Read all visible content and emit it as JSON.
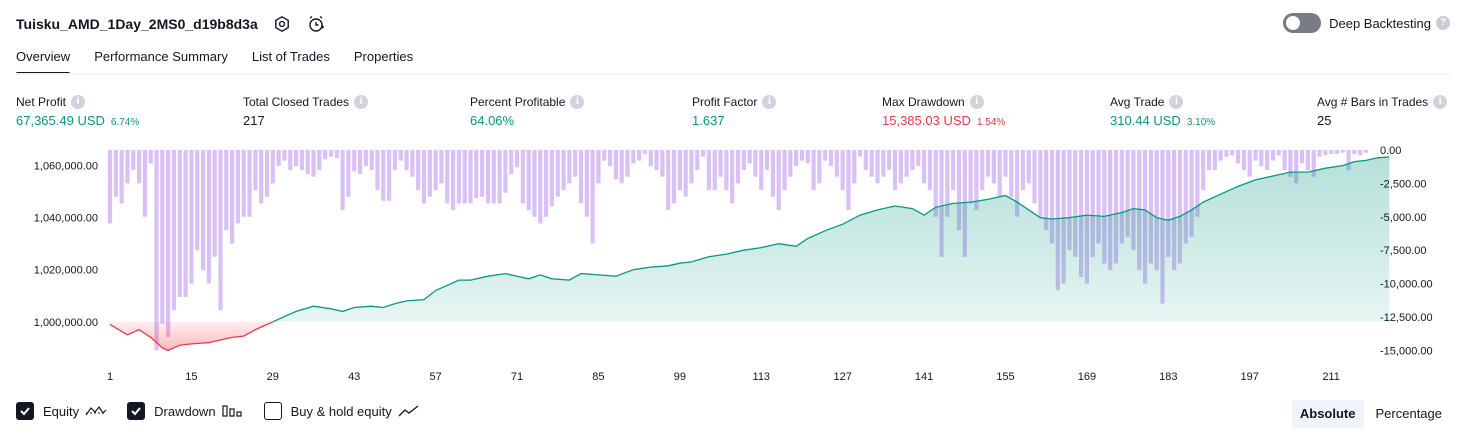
{
  "header": {
    "title": "Tuisku_AMD_1Day_2MS0_d19b8d3a",
    "deep_backtesting_label": "Deep Backtesting",
    "help_glyph": "?"
  },
  "tabs": [
    "Overview",
    "Performance Summary",
    "List of Trades",
    "Properties"
  ],
  "metrics": {
    "info_glyph": "i",
    "net_profit": {
      "label": "Net Profit",
      "value": "67,365.49 USD",
      "pct": "6.74%"
    },
    "total_closed_trades": {
      "label": "Total Closed Trades",
      "value": "217"
    },
    "percent_profitable": {
      "label": "Percent Profitable",
      "value": "64.06%"
    },
    "profit_factor": {
      "label": "Profit Factor",
      "value": "1.637"
    },
    "max_drawdown": {
      "label": "Max Drawdown",
      "value": "15,385.03 USD",
      "pct": "1.54%"
    },
    "avg_trade": {
      "label": "Avg Trade",
      "value": "310.44 USD",
      "pct": "3.10%"
    },
    "avg_bars": {
      "label": "Avg # Bars in Trades",
      "value": "25"
    }
  },
  "legend": {
    "equity": "Equity",
    "drawdown": "Drawdown",
    "buy_hold": "Buy & hold equity",
    "equity_checked": true,
    "drawdown_checked": true,
    "buy_hold_checked": false
  },
  "modes": {
    "absolute": "Absolute",
    "percentage": "Percentage",
    "active": "absolute"
  },
  "colors": {
    "equity_positive": "#089981",
    "equity_negative": "#f23645",
    "drawdown_bar": "#d7bdf5",
    "drawdown_overlap": "#aab0e8"
  },
  "chart_data": {
    "type": "line",
    "x_ticks": [
      "1",
      "15",
      "29",
      "43",
      "57",
      "71",
      "85",
      "99",
      "113",
      "127",
      "141",
      "155",
      "169",
      "183",
      "197",
      "211"
    ],
    "y_left_ticks": [
      "1,060,000.00",
      "1,040,000.00",
      "1,020,000.00",
      "1,000,000.00"
    ],
    "y_right_ticks": [
      "0.00",
      "-2,500.00",
      "-5,000.00",
      "-7,500.00",
      "-10,000.00",
      "-12,500.00",
      "-15,000.00"
    ],
    "initial_capital": 1000000,
    "equity_ylim": [
      988000,
      1066000
    ],
    "drawdown_ylim": [
      -15200,
      0
    ],
    "equity": [
      [
        1,
        999000
      ],
      [
        4,
        995000
      ],
      [
        6,
        997000
      ],
      [
        8,
        994000
      ],
      [
        10,
        990000
      ],
      [
        11,
        989000
      ],
      [
        13,
        991000
      ],
      [
        15,
        991500
      ],
      [
        18,
        992000
      ],
      [
        20,
        993000
      ],
      [
        22,
        994000
      ],
      [
        24,
        994500
      ],
      [
        26,
        997000
      ],
      [
        28,
        999000
      ],
      [
        30,
        1001000
      ],
      [
        33,
        1004000
      ],
      [
        36,
        1006000
      ],
      [
        39,
        1005000
      ],
      [
        41,
        1004000
      ],
      [
        43,
        1005500
      ],
      [
        46,
        1006000
      ],
      [
        48,
        1005500
      ],
      [
        50,
        1007000
      ],
      [
        52,
        1008000
      ],
      [
        55,
        1008500
      ],
      [
        57,
        1012000
      ],
      [
        59,
        1014000
      ],
      [
        61,
        1016000
      ],
      [
        63,
        1016000
      ],
      [
        66,
        1017500
      ],
      [
        69,
        1018500
      ],
      [
        71,
        1017500
      ],
      [
        73,
        1016500
      ],
      [
        75,
        1018000
      ],
      [
        77,
        1016500
      ],
      [
        80,
        1016000
      ],
      [
        82,
        1018500
      ],
      [
        85,
        1018000
      ],
      [
        88,
        1017500
      ],
      [
        91,
        1020000
      ],
      [
        94,
        1021000
      ],
      [
        97,
        1021500
      ],
      [
        99,
        1022500
      ],
      [
        101,
        1023000
      ],
      [
        104,
        1025000
      ],
      [
        107,
        1026000
      ],
      [
        110,
        1027500
      ],
      [
        113,
        1028500
      ],
      [
        116,
        1030000
      ],
      [
        119,
        1029000
      ],
      [
        121,
        1032000
      ],
      [
        124,
        1035000
      ],
      [
        127,
        1037500
      ],
      [
        130,
        1041000
      ],
      [
        133,
        1043000
      ],
      [
        136,
        1044500
      ],
      [
        139,
        1043500
      ],
      [
        141,
        1041000
      ],
      [
        143,
        1044000
      ],
      [
        146,
        1045500
      ],
      [
        149,
        1046000
      ],
      [
        152,
        1047000
      ],
      [
        155,
        1048500
      ],
      [
        157,
        1046000
      ],
      [
        159,
        1043000
      ],
      [
        161,
        1040000
      ],
      [
        163,
        1039500
      ],
      [
        166,
        1040000
      ],
      [
        169,
        1041000
      ],
      [
        172,
        1040500
      ],
      [
        175,
        1042000
      ],
      [
        177,
        1043500
      ],
      [
        179,
        1043000
      ],
      [
        181,
        1040000
      ],
      [
        183,
        1039000
      ],
      [
        185,
        1040500
      ],
      [
        187,
        1043000
      ],
      [
        189,
        1046000
      ],
      [
        192,
        1049000
      ],
      [
        195,
        1052000
      ],
      [
        198,
        1054500
      ],
      [
        201,
        1056000
      ],
      [
        204,
        1057500
      ],
      [
        207,
        1057500
      ],
      [
        210,
        1059000
      ],
      [
        213,
        1060000
      ],
      [
        215,
        1061500
      ],
      [
        217,
        1062000
      ],
      [
        219,
        1063000
      ],
      [
        221,
        1063300
      ]
    ],
    "drawdown": [
      -5500,
      -3500,
      -4000,
      -2500,
      -1500,
      -2500,
      -5000,
      -1000,
      -15000,
      -13000,
      -14000,
      -12000,
      -11000,
      -11000,
      -10000,
      -7500,
      -9000,
      -10000,
      -8000,
      -12000,
      -6000,
      -7000,
      -5500,
      -5000,
      -5000,
      -3000,
      -4000,
      -3500,
      -2500,
      -1200,
      -800,
      -1500,
      -1200,
      -1500,
      -1800,
      -2000,
      -1500,
      -700,
      -500,
      -600,
      -4500,
      -3500,
      -1600,
      -1800,
      -1200,
      -1500,
      -3000,
      -3800,
      -3800,
      -1500,
      -800,
      -1500,
      -2000,
      -3000,
      -4000,
      -3500,
      -3000,
      -2500,
      -4000,
      -4500,
      -4000,
      -4000,
      -4000,
      -3600,
      -3500,
      -4000,
      -4000,
      -4000,
      -3200,
      -1800,
      -1300,
      -4000,
      -4500,
      -5000,
      -5500,
      -5000,
      -4200,
      -3500,
      -3000,
      -2500,
      -2000,
      -4000,
      -5000,
      -7000,
      -2500,
      -800,
      -1200,
      -2200,
      -2500,
      -2000,
      -1000,
      -800,
      -300,
      -1200,
      -1500,
      -2000,
      -4500,
      -4000,
      -3000,
      -3500,
      -2500,
      -1500,
      -500,
      -3000,
      -3000,
      -2000,
      -3000,
      -4000,
      -2500,
      -1500,
      -1000,
      -2000,
      -3000,
      -1500,
      -3500,
      -4500,
      -3000,
      -2000,
      -1200,
      -800,
      -1000,
      -3000,
      -2500,
      -800,
      -1200,
      -2000,
      -3000,
      -4500,
      -2500,
      -500,
      -1500,
      -2000,
      -2500,
      -2000,
      -1500,
      -3000,
      -2500,
      -2000,
      -1500,
      -1200,
      -2500,
      -3000,
      -5000,
      -8000,
      -5000,
      -3000,
      -6000,
      -8000,
      -4000,
      -4500,
      -3000,
      -2000,
      -2500,
      -3500,
      -2000,
      -3500,
      -5000,
      -3000,
      -2500,
      -4000,
      -5000,
      -6000,
      -7000,
      -10500,
      -10000,
      -7500,
      -8000,
      -9500,
      -10000,
      -8000,
      -7000,
      -8500,
      -9000,
      -8500,
      -7000,
      -6500,
      -7500,
      -9000,
      -10000,
      -8500,
      -9000,
      -11500,
      -8000,
      -9000,
      -8500,
      -7000,
      -6500,
      -5000,
      -3000,
      -1500,
      -1500,
      -800,
      -500,
      -400,
      -1000,
      -1500,
      -2000,
      -800,
      -1200,
      -1500,
      -800,
      -400,
      -1500,
      -2000,
      -2500,
      -1000,
      -1500,
      -2000,
      -500,
      -400,
      -300,
      -300,
      -200,
      -1500,
      -300,
      -400,
      -200
    ]
  }
}
